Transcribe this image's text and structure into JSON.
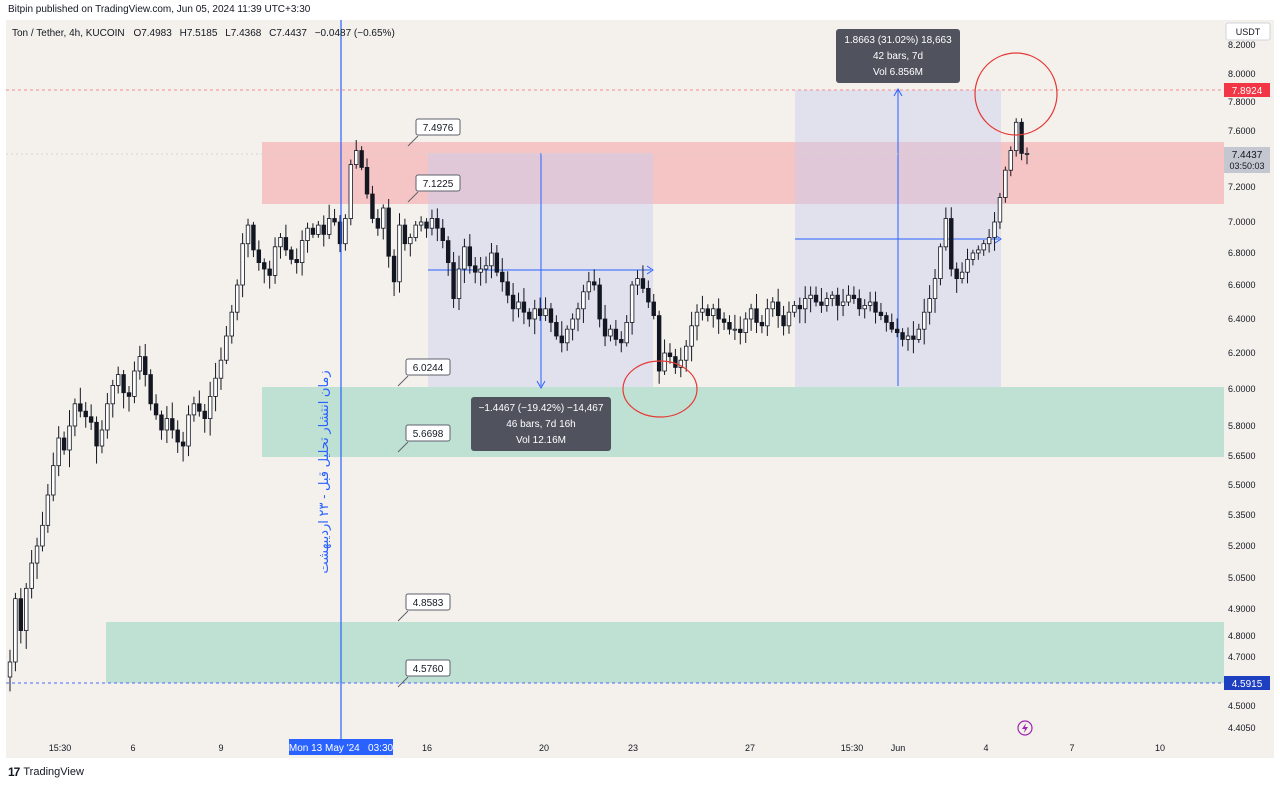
{
  "header": {
    "published": "Bitpin published on TradingView.com, Jun 05, 2024 11:39 UTC+3:30"
  },
  "legend": {
    "symbol": "Ton / Tether, 4h, KUCOIN",
    "o": "O7.4983",
    "h": "H7.5185",
    "l": "L7.4368",
    "c": "C7.4437",
    "change": "−0.0487 (−0.65%)"
  },
  "footer": {
    "brand": "TradingView"
  },
  "price_axis": {
    "currency": "USDT",
    "ticks": [
      "8.2000",
      "8.0000",
      "7.8000",
      "7.6000",
      "7.2000",
      "7.0000",
      "6.8000",
      "6.6000",
      "6.4000",
      "6.2000",
      "6.0000",
      "5.8000",
      "5.6500",
      "5.5000",
      "5.3500",
      "5.2000",
      "5.0500",
      "4.9000",
      "4.8000",
      "4.7000",
      "4.6000",
      "4.5000",
      "4.4050"
    ],
    "last_label": "7.4437",
    "countdown": "03:50:03",
    "marker_high": "7.8924",
    "marker_low": "4.5915"
  },
  "time_axis": {
    "ticks": [
      "15:30",
      "6",
      "9",
      "16",
      "20",
      "23",
      "27",
      "15:30",
      "Jun",
      "4",
      "7",
      "10"
    ],
    "cursor_label": "Mon 13 May '24   03:30"
  },
  "annotations": {
    "vertical_text": "زمان انتشار تحلیل قبل - ۲۳ اردیبهشت",
    "callouts": [
      "7.4976",
      "7.1225",
      "6.0244",
      "5.6698",
      "4.8583",
      "4.5760"
    ],
    "measure_down": {
      "line1": "−1.4467 (−19.42%) −14,467",
      "line2": "46 bars, 7d 16h",
      "line3": "Vol 12.16M"
    },
    "measure_up": {
      "line1": "1.8663 (31.02%) 18,663",
      "line2": "42 bars, 7d",
      "line3": "Vol 6.856M"
    }
  },
  "colors": {
    "up": "#ffffff",
    "down": "#131722",
    "resistance_zone": "#f5b5b8",
    "support_zone": "#a8dacb",
    "measure_box": "#c9cdf0",
    "vertical_line": "#2962ff",
    "circle": "#e53935"
  },
  "chart_data": {
    "type": "candlestick",
    "interval": "4h",
    "y_range": [
      4.4,
      8.25
    ],
    "zones": [
      {
        "type": "resistance",
        "from": 7.1225,
        "to": 7.4976
      },
      {
        "type": "support",
        "from": 5.6698,
        "to": 6.0244
      },
      {
        "type": "support",
        "from": 4.576,
        "to": 4.8583
      }
    ],
    "measurements": [
      {
        "from": 7.46,
        "to": 6.02,
        "change": -1.4467,
        "change_pct": -19.42,
        "bars": 46,
        "duration": "7d 16h",
        "volume": "12.16M"
      },
      {
        "from": 6.02,
        "to": 7.89,
        "change": 1.8663,
        "change_pct": 31.02,
        "bars": 42,
        "duration": "7d",
        "volume": "6.856M"
      }
    ],
    "closes": [
      4.68,
      4.95,
      4.82,
      5.0,
      5.12,
      5.2,
      5.3,
      5.45,
      5.6,
      5.74,
      5.68,
      5.8,
      5.92,
      5.88,
      5.85,
      5.82,
      5.7,
      5.78,
      5.92,
      6.02,
      6.08,
      5.98,
      5.96,
      6.1,
      6.18,
      6.08,
      5.92,
      5.86,
      5.78,
      5.84,
      5.78,
      5.72,
      5.7,
      5.86,
      5.92,
      5.88,
      5.84,
      5.96,
      6.06,
      6.16,
      6.3,
      6.44,
      6.6,
      6.86,
      6.98,
      6.82,
      6.74,
      6.7,
      6.66,
      6.84,
      6.9,
      6.82,
      6.76,
      6.74,
      6.88,
      6.96,
      6.92,
      6.98,
      6.92,
      7.02,
      7.0,
      6.86,
      7.02,
      7.36,
      7.46,
      7.34,
      7.16,
      7.02,
      6.96,
      7.08,
      6.78,
      6.62,
      6.98,
      6.86,
      6.9,
      6.98,
      7.0,
      6.96,
      7.02,
      6.96,
      6.88,
      6.74,
      6.52,
      6.7,
      6.84,
      6.72,
      6.68,
      6.7,
      6.72,
      6.8,
      6.68,
      6.62,
      6.54,
      6.46,
      6.5,
      6.44,
      6.4,
      6.46,
      6.42,
      6.46,
      6.38,
      6.3,
      6.26,
      6.34,
      6.4,
      6.46,
      6.56,
      6.62,
      6.6,
      6.4,
      6.3,
      6.34,
      6.28,
      6.26,
      6.38,
      6.6,
      6.64,
      6.58,
      6.5,
      6.42,
      6.1,
      6.2,
      6.18,
      6.12,
      6.16,
      6.24,
      6.36,
      6.44,
      6.46,
      6.42,
      6.46,
      6.4,
      6.38,
      6.34,
      6.34,
      6.32,
      6.4,
      6.46,
      6.38,
      6.36,
      6.46,
      6.5,
      6.42,
      6.36,
      6.44,
      6.48,
      6.46,
      6.52,
      6.54,
      6.5,
      6.48,
      6.52,
      6.54,
      6.48,
      6.5,
      6.54,
      6.52,
      6.46,
      6.48,
      6.5,
      6.44,
      6.42,
      6.38,
      6.34,
      6.32,
      6.28,
      6.3,
      6.28,
      6.34,
      6.44,
      6.52,
      6.64,
      6.84,
      7.02,
      6.7,
      6.64,
      6.68,
      6.76,
      6.8,
      6.82,
      6.86,
      6.9,
      7.0,
      7.14,
      7.32,
      7.46,
      7.66,
      7.44,
      7.44
    ]
  }
}
